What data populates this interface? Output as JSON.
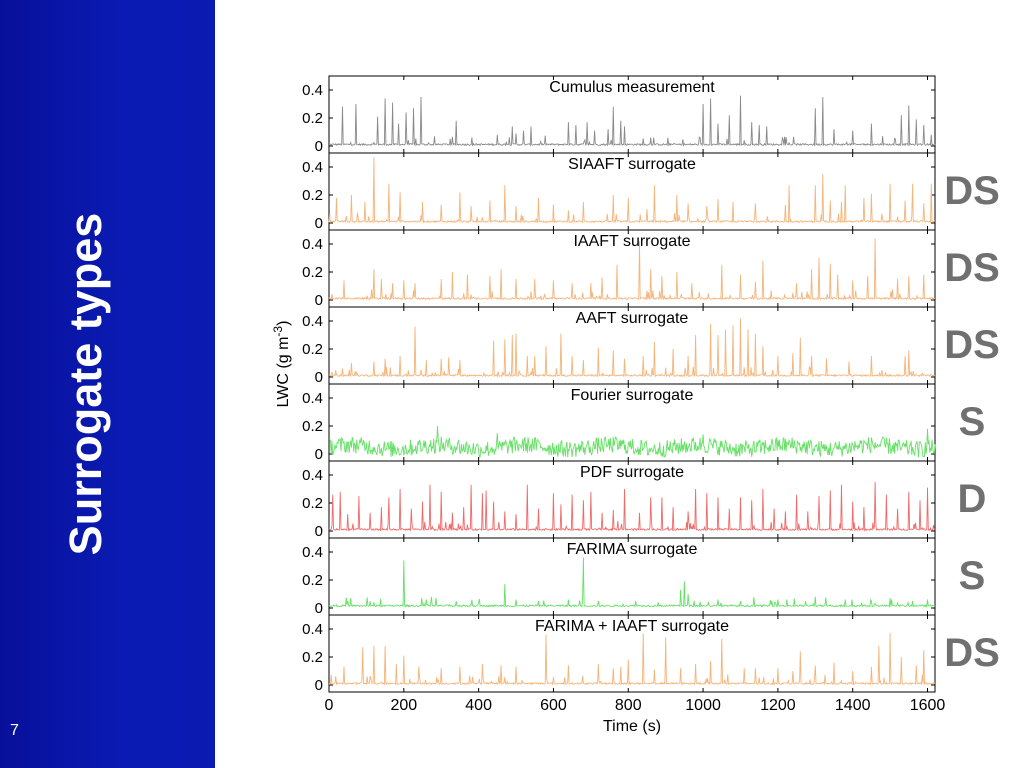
{
  "slide": {
    "title": "Surrogate types",
    "page_number": "7"
  },
  "colors": {
    "sidebar": "#0a1bb4",
    "measurement": "#8a8a8a",
    "orange": "#f5b47a",
    "green": "#66e066",
    "red": "#f06a6a",
    "class_label": "#707070"
  },
  "chart_data": {
    "type": "line",
    "xlabel": "Time (s)",
    "ylabel": "LWC (g m",
    "ylabel_sup": "-3",
    "ylabel_close": ")",
    "xlim": [
      0,
      1620
    ],
    "ylim": [
      -0.05,
      0.5
    ],
    "x_ticks": [
      "0",
      "200",
      "400",
      "600",
      "800",
      "1000",
      "1200",
      "1400",
      "1600"
    ],
    "y_ticks": [
      "0",
      "0.2",
      "0.4"
    ],
    "panels": [
      {
        "title": "Cumulus measurement",
        "style": "spiky",
        "color": "#8a8a8a",
        "class_label": "",
        "peaks": [
          [
            35,
            0.28
          ],
          [
            72,
            0.3
          ],
          [
            130,
            0.21
          ],
          [
            150,
            0.34
          ],
          [
            170,
            0.31
          ],
          [
            185,
            0.16
          ],
          [
            205,
            0.24
          ],
          [
            225,
            0.27
          ],
          [
            245,
            0.35
          ],
          [
            340,
            0.18
          ],
          [
            450,
            0.08
          ],
          [
            490,
            0.14
          ],
          [
            500,
            0.09
          ],
          [
            520,
            0.11
          ],
          [
            540,
            0.14
          ],
          [
            640,
            0.17
          ],
          [
            660,
            0.15
          ],
          [
            690,
            0.17
          ],
          [
            710,
            0.11
          ],
          [
            745,
            0.12
          ],
          [
            760,
            0.28
          ],
          [
            780,
            0.18
          ],
          [
            790,
            0.14
          ],
          [
            860,
            0.06
          ],
          [
            1000,
            0.3
          ],
          [
            1020,
            0.34
          ],
          [
            1040,
            0.16
          ],
          [
            1070,
            0.22
          ],
          [
            1100,
            0.36
          ],
          [
            1130,
            0.17
          ],
          [
            1150,
            0.15
          ],
          [
            1170,
            0.14
          ],
          [
            1300,
            0.27
          ],
          [
            1320,
            0.35
          ],
          [
            1350,
            0.12
          ],
          [
            1400,
            0.11
          ],
          [
            1450,
            0.16
          ],
          [
            1480,
            0.07
          ],
          [
            1530,
            0.22
          ],
          [
            1550,
            0.29
          ],
          [
            1570,
            0.19
          ],
          [
            1590,
            0.15
          ],
          [
            1610,
            0.08
          ]
        ]
      },
      {
        "title": "SIAAFT surrogate",
        "style": "spiky",
        "color": "#f5b47a",
        "class_label": "DS",
        "peaks": [
          [
            20,
            0.18
          ],
          [
            60,
            0.2
          ],
          [
            95,
            0.15
          ],
          [
            120,
            0.47
          ],
          [
            160,
            0.28
          ],
          [
            190,
            0.22
          ],
          [
            250,
            0.15
          ],
          [
            300,
            0.13
          ],
          [
            350,
            0.22
          ],
          [
            380,
            0.12
          ],
          [
            430,
            0.16
          ],
          [
            470,
            0.27
          ],
          [
            500,
            0.12
          ],
          [
            560,
            0.18
          ],
          [
            600,
            0.13
          ],
          [
            640,
            0.09
          ],
          [
            680,
            0.15
          ],
          [
            760,
            0.2
          ],
          [
            800,
            0.18
          ],
          [
            850,
            0.1
          ],
          [
            870,
            0.27
          ],
          [
            930,
            0.2
          ],
          [
            960,
            0.14
          ],
          [
            1010,
            0.12
          ],
          [
            1040,
            0.17
          ],
          [
            1080,
            0.15
          ],
          [
            1140,
            0.14
          ],
          [
            1220,
            0.13
          ],
          [
            1230,
            0.27
          ],
          [
            1300,
            0.27
          ],
          [
            1320,
            0.35
          ],
          [
            1340,
            0.16
          ],
          [
            1370,
            0.15
          ],
          [
            1380,
            0.27
          ],
          [
            1430,
            0.18
          ],
          [
            1450,
            0.21
          ],
          [
            1500,
            0.28
          ],
          [
            1540,
            0.16
          ],
          [
            1560,
            0.28
          ],
          [
            1590,
            0.14
          ],
          [
            1610,
            0.28
          ]
        ]
      },
      {
        "title": "IAAFT surrogate",
        "style": "spiky",
        "color": "#f5b47a",
        "class_label": "DS",
        "peaks": [
          [
            40,
            0.14
          ],
          [
            120,
            0.22
          ],
          [
            140,
            0.15
          ],
          [
            170,
            0.12
          ],
          [
            200,
            0.14
          ],
          [
            230,
            0.12
          ],
          [
            300,
            0.15
          ],
          [
            330,
            0.2
          ],
          [
            370,
            0.18
          ],
          [
            430,
            0.17
          ],
          [
            460,
            0.22
          ],
          [
            500,
            0.15
          ],
          [
            550,
            0.15
          ],
          [
            600,
            0.14
          ],
          [
            650,
            0.12
          ],
          [
            700,
            0.12
          ],
          [
            730,
            0.16
          ],
          [
            770,
            0.25
          ],
          [
            830,
            0.42
          ],
          [
            860,
            0.22
          ],
          [
            890,
            0.17
          ],
          [
            930,
            0.2
          ],
          [
            970,
            0.12
          ],
          [
            1050,
            0.25
          ],
          [
            1100,
            0.18
          ],
          [
            1140,
            0.13
          ],
          [
            1160,
            0.28
          ],
          [
            1250,
            0.12
          ],
          [
            1290,
            0.22
          ],
          [
            1310,
            0.3
          ],
          [
            1340,
            0.26
          ],
          [
            1360,
            0.18
          ],
          [
            1400,
            0.14
          ],
          [
            1440,
            0.17
          ],
          [
            1460,
            0.44
          ],
          [
            1520,
            0.15
          ],
          [
            1550,
            0.17
          ],
          [
            1590,
            0.18
          ]
        ]
      },
      {
        "title": "AAFT surrogate",
        "style": "spiky",
        "color": "#f5b47a",
        "class_label": "DS",
        "peaks": [
          [
            60,
            0.1
          ],
          [
            120,
            0.11
          ],
          [
            150,
            0.13
          ],
          [
            190,
            0.15
          ],
          [
            230,
            0.36
          ],
          [
            260,
            0.12
          ],
          [
            300,
            0.13
          ],
          [
            320,
            0.14
          ],
          [
            350,
            0.12
          ],
          [
            440,
            0.26
          ],
          [
            470,
            0.27
          ],
          [
            490,
            0.3
          ],
          [
            500,
            0.31
          ],
          [
            530,
            0.15
          ],
          [
            550,
            0.15
          ],
          [
            580,
            0.22
          ],
          [
            620,
            0.31
          ],
          [
            650,
            0.15
          ],
          [
            680,
            0.12
          ],
          [
            720,
            0.21
          ],
          [
            760,
            0.19
          ],
          [
            790,
            0.13
          ],
          [
            840,
            0.15
          ],
          [
            870,
            0.25
          ],
          [
            920,
            0.2
          ],
          [
            960,
            0.15
          ],
          [
            980,
            0.3
          ],
          [
            1020,
            0.38
          ],
          [
            1040,
            0.3
          ],
          [
            1060,
            0.34
          ],
          [
            1080,
            0.37
          ],
          [
            1100,
            0.42
          ],
          [
            1120,
            0.34
          ],
          [
            1140,
            0.31
          ],
          [
            1160,
            0.22
          ],
          [
            1200,
            0.15
          ],
          [
            1240,
            0.17
          ],
          [
            1260,
            0.28
          ],
          [
            1290,
            0.15
          ],
          [
            1330,
            0.13
          ],
          [
            1390,
            0.11
          ],
          [
            1450,
            0.15
          ],
          [
            1540,
            0.15
          ],
          [
            1550,
            0.19
          ]
        ]
      },
      {
        "title": "Fourier surrogate",
        "style": "noise",
        "color": "#66e066",
        "class_label": "S",
        "base": 0.05,
        "amp": 0.06,
        "peaks": [
          [
            290,
            0.2
          ],
          [
            450,
            0.15
          ],
          [
            1000,
            0.14
          ],
          [
            1600,
            0.18
          ]
        ]
      },
      {
        "title": "PDF surrogate",
        "style": "spiky",
        "color": "#f06a6a",
        "class_label": "D",
        "peaks": [
          [
            10,
            0.26
          ],
          [
            30,
            0.28
          ],
          [
            50,
            0.12
          ],
          [
            80,
            0.25
          ],
          [
            110,
            0.13
          ],
          [
            140,
            0.17
          ],
          [
            160,
            0.24
          ],
          [
            190,
            0.3
          ],
          [
            220,
            0.16
          ],
          [
            250,
            0.21
          ],
          [
            270,
            0.33
          ],
          [
            300,
            0.28
          ],
          [
            330,
            0.13
          ],
          [
            360,
            0.17
          ],
          [
            380,
            0.33
          ],
          [
            410,
            0.27
          ],
          [
            420,
            0.29
          ],
          [
            440,
            0.21
          ],
          [
            470,
            0.14
          ],
          [
            500,
            0.12
          ],
          [
            530,
            0.33
          ],
          [
            560,
            0.16
          ],
          [
            600,
            0.27
          ],
          [
            620,
            0.19
          ],
          [
            650,
            0.26
          ],
          [
            680,
            0.22
          ],
          [
            700,
            0.28
          ],
          [
            730,
            0.13
          ],
          [
            760,
            0.15
          ],
          [
            790,
            0.3
          ],
          [
            830,
            0.13
          ],
          [
            860,
            0.24
          ],
          [
            890,
            0.24
          ],
          [
            920,
            0.17
          ],
          [
            960,
            0.14
          ],
          [
            980,
            0.3
          ],
          [
            1010,
            0.27
          ],
          [
            1040,
            0.24
          ],
          [
            1070,
            0.16
          ],
          [
            1100,
            0.24
          ],
          [
            1130,
            0.22
          ],
          [
            1160,
            0.3
          ],
          [
            1190,
            0.16
          ],
          [
            1220,
            0.14
          ],
          [
            1250,
            0.26
          ],
          [
            1280,
            0.14
          ],
          [
            1310,
            0.25
          ],
          [
            1340,
            0.29
          ],
          [
            1370,
            0.33
          ],
          [
            1400,
            0.21
          ],
          [
            1430,
            0.17
          ],
          [
            1460,
            0.35
          ],
          [
            1490,
            0.26
          ],
          [
            1520,
            0.16
          ],
          [
            1550,
            0.28
          ],
          [
            1580,
            0.22
          ],
          [
            1600,
            0.31
          ]
        ]
      },
      {
        "title": "FARIMA surrogate",
        "style": "spiky",
        "color": "#66e066",
        "class_label": "S",
        "base": 0.01,
        "peaks": [
          [
            50,
            0.05
          ],
          [
            120,
            0.04
          ],
          [
            200,
            0.34
          ],
          [
            260,
            0.06
          ],
          [
            340,
            0.05
          ],
          [
            400,
            0.04
          ],
          [
            470,
            0.17
          ],
          [
            500,
            0.06
          ],
          [
            560,
            0.05
          ],
          [
            640,
            0.06
          ],
          [
            680,
            0.36
          ],
          [
            720,
            0.05
          ],
          [
            820,
            0.05
          ],
          [
            880,
            0.04
          ],
          [
            940,
            0.13
          ],
          [
            950,
            0.19
          ],
          [
            960,
            0.1
          ],
          [
            1040,
            0.06
          ],
          [
            1100,
            0.05
          ],
          [
            1200,
            0.06
          ],
          [
            1300,
            0.08
          ],
          [
            1380,
            0.06
          ],
          [
            1450,
            0.05
          ],
          [
            1500,
            0.07
          ],
          [
            1560,
            0.05
          ],
          [
            1600,
            0.06
          ]
        ]
      },
      {
        "title": "FARIMA + IAAFT surrogate",
        "style": "spiky",
        "color": "#f5b47a",
        "class_label": "DS",
        "peaks": [
          [
            40,
            0.13
          ],
          [
            90,
            0.27
          ],
          [
            120,
            0.28
          ],
          [
            150,
            0.28
          ],
          [
            180,
            0.15
          ],
          [
            200,
            0.21
          ],
          [
            240,
            0.13
          ],
          [
            300,
            0.12
          ],
          [
            350,
            0.13
          ],
          [
            410,
            0.15
          ],
          [
            460,
            0.14
          ],
          [
            500,
            0.13
          ],
          [
            580,
            0.36
          ],
          [
            640,
            0.14
          ],
          [
            720,
            0.15
          ],
          [
            760,
            0.12
          ],
          [
            780,
            0.13
          ],
          [
            800,
            0.18
          ],
          [
            840,
            0.37
          ],
          [
            870,
            0.11
          ],
          [
            900,
            0.34
          ],
          [
            940,
            0.12
          ],
          [
            980,
            0.15
          ],
          [
            1020,
            0.17
          ],
          [
            1050,
            0.33
          ],
          [
            1110,
            0.12
          ],
          [
            1140,
            0.12
          ],
          [
            1200,
            0.12
          ],
          [
            1240,
            0.1
          ],
          [
            1260,
            0.24
          ],
          [
            1300,
            0.14
          ],
          [
            1350,
            0.16
          ],
          [
            1400,
            0.1
          ],
          [
            1450,
            0.13
          ],
          [
            1470,
            0.28
          ],
          [
            1500,
            0.37
          ],
          [
            1530,
            0.2
          ],
          [
            1570,
            0.14
          ],
          [
            1590,
            0.25
          ]
        ]
      }
    ]
  }
}
